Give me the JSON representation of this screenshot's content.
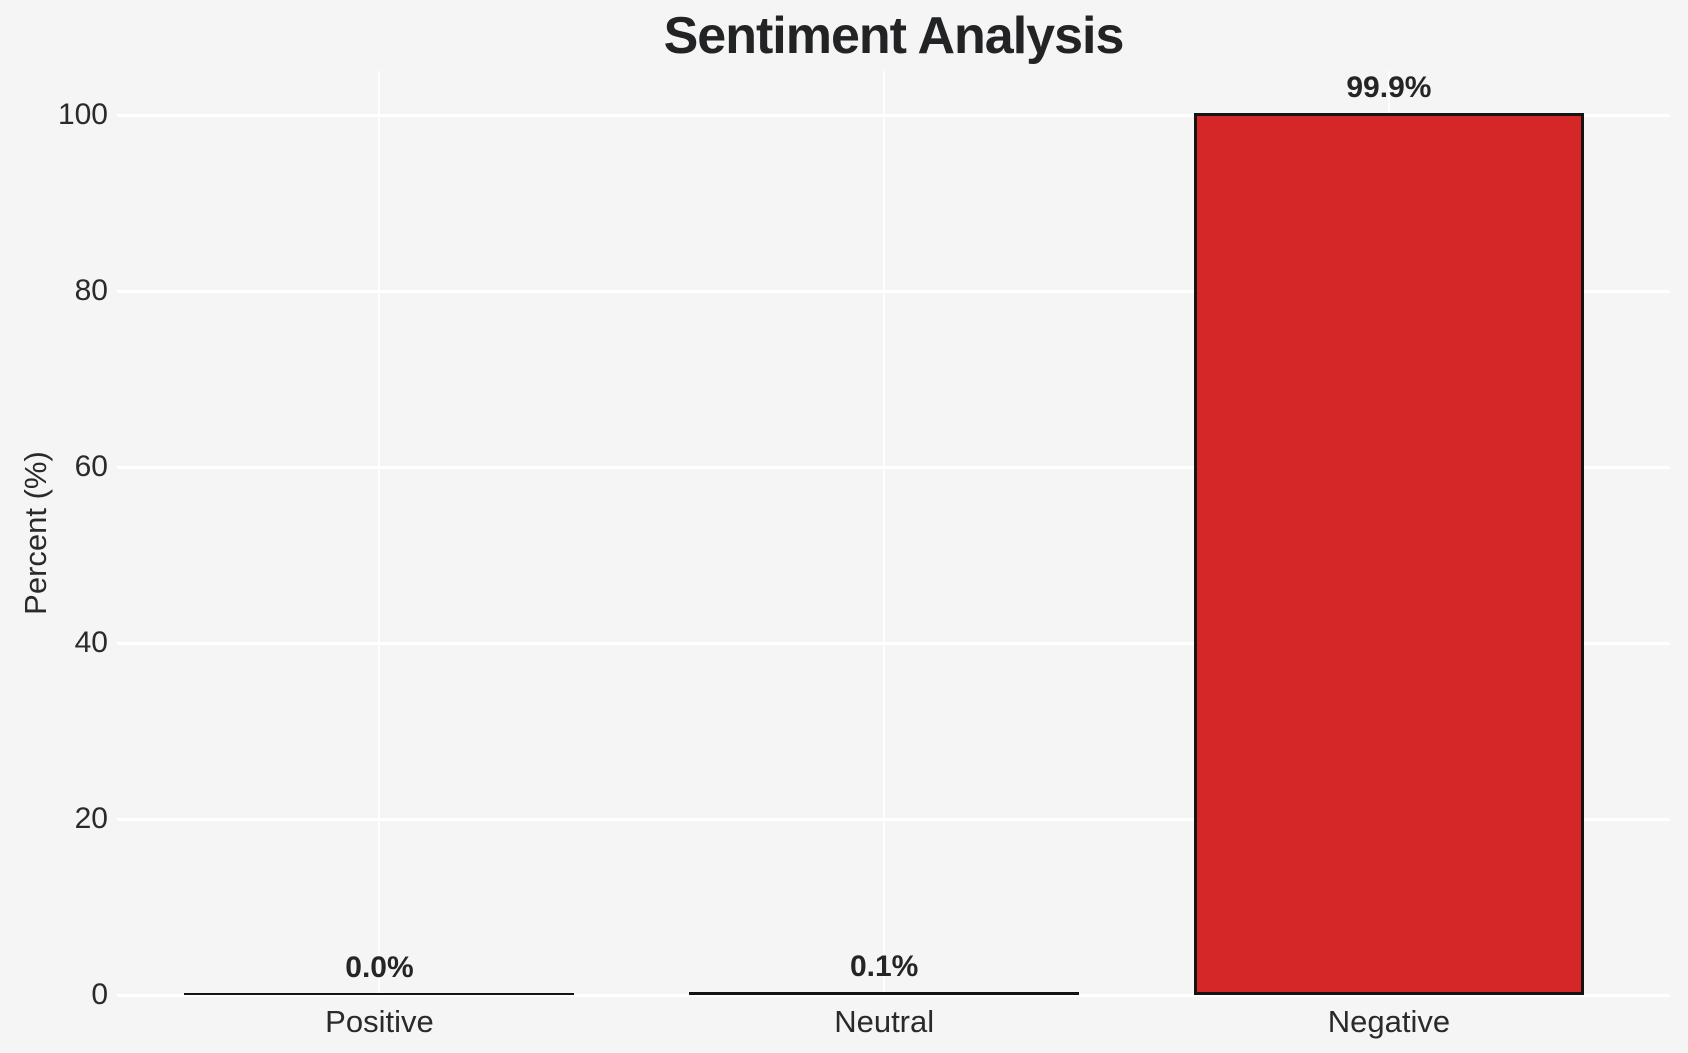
{
  "chart_data": {
    "type": "bar",
    "title": "Sentiment Analysis",
    "xlabel": "",
    "ylabel": "Percent (%)",
    "categories": [
      "Positive",
      "Neutral",
      "Negative"
    ],
    "values": [
      0.0,
      0.1,
      99.9
    ],
    "value_labels": [
      "0.0%",
      "0.1%",
      "99.9%"
    ],
    "ylim": [
      0,
      105
    ],
    "yticks": [
      0,
      20,
      40,
      60,
      80,
      100
    ],
    "grid": "on",
    "legend": "none",
    "colors": {
      "background": "#f5f5f6",
      "gridline": "#ffffff",
      "bar_fill": "#d62728",
      "bar_edge": "#141414",
      "text": "#262626"
    }
  }
}
